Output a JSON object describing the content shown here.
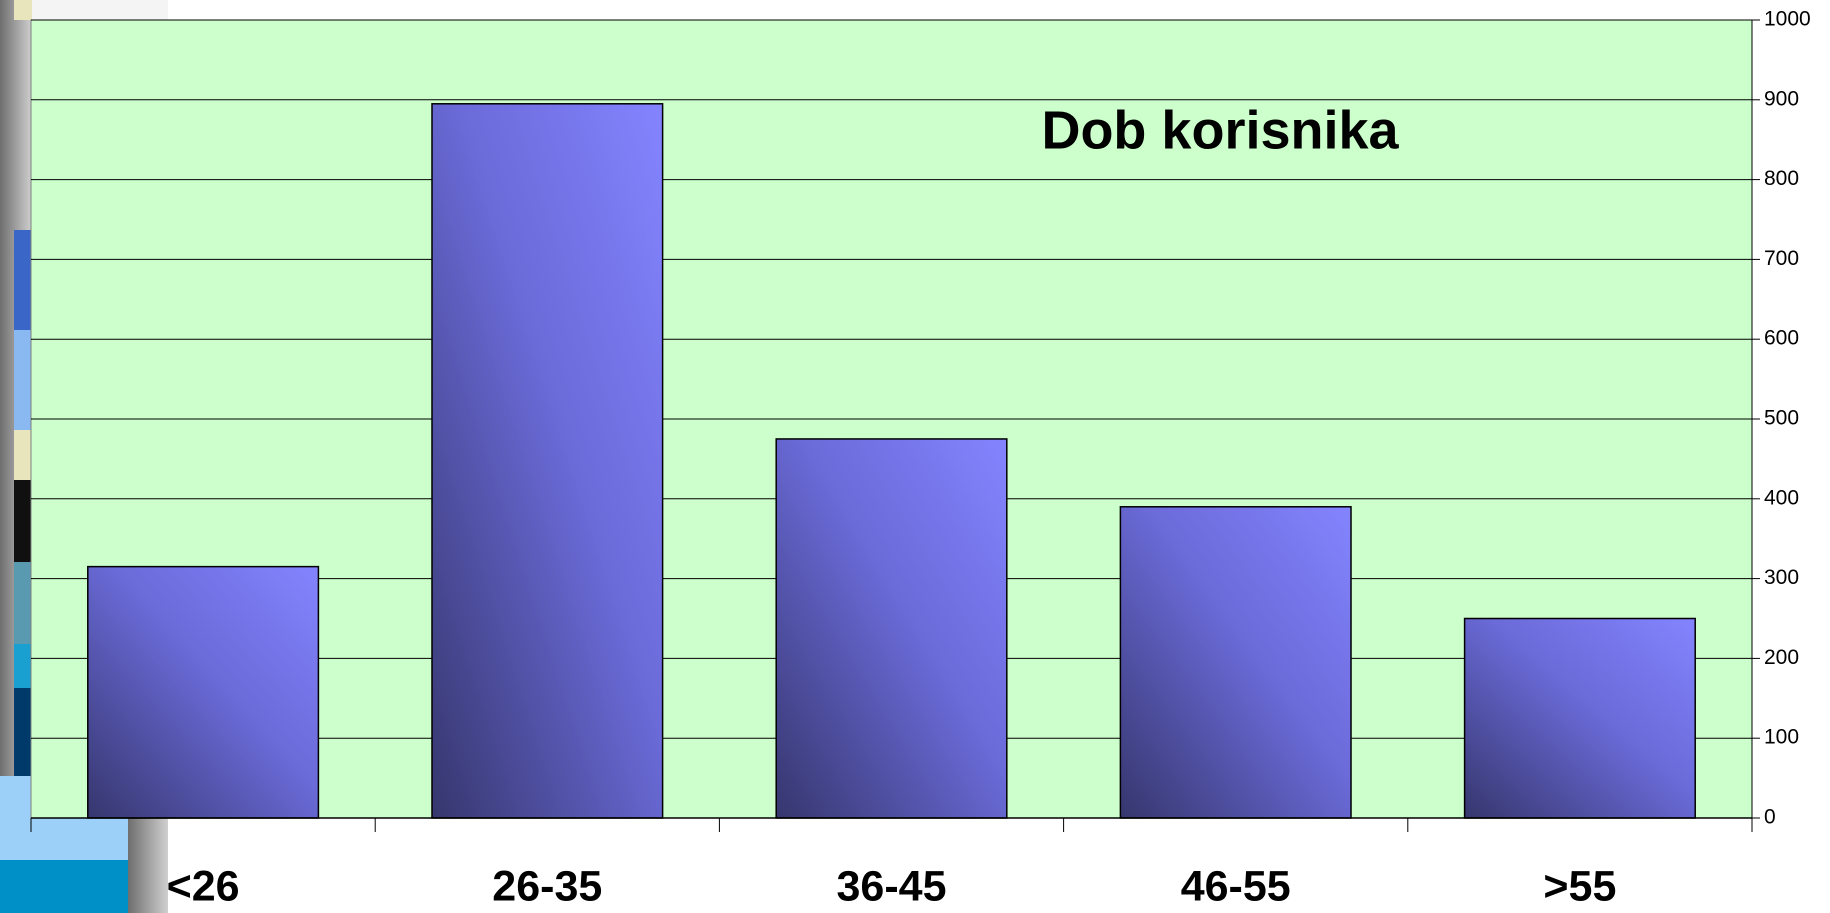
{
  "chart_data": {
    "type": "bar",
    "title": "Dob korisnika",
    "categories": [
      "<26",
      "26-35",
      "36-45",
      "46-55",
      ">55"
    ],
    "values": [
      315,
      895,
      475,
      390,
      250
    ],
    "color": "#8080ff",
    "ylim": [
      0,
      1000
    ],
    "yticks": [
      0,
      100,
      200,
      300,
      400,
      500,
      600,
      700,
      800,
      900,
      1000
    ],
    "grid": true
  }
}
